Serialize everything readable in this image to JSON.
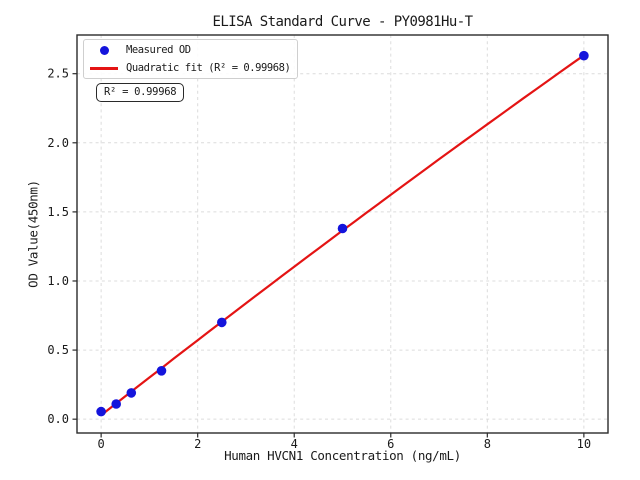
{
  "chart_data": {
    "type": "scatter",
    "title": "ELISA Standard Curve - PY0981Hu-T",
    "xlabel": "Human HVCN1 Concentration (ng/mL)",
    "ylabel": "OD Value(450nm)",
    "xlim": [
      -0.5,
      10.5
    ],
    "ylim": [
      -0.1,
      2.78
    ],
    "xticks": {
      "values": [
        0,
        2,
        4,
        6,
        8,
        10
      ],
      "labels": [
        "0",
        "2",
        "4",
        "6",
        "8",
        "10"
      ]
    },
    "yticks": {
      "values": [
        0,
        0.5,
        1.0,
        1.5,
        2.0,
        2.5
      ],
      "labels": [
        "0.0",
        "0.5",
        "1.0",
        "1.5",
        "2.0",
        "2.5"
      ]
    },
    "grid": {
      "visible": true,
      "line_style": "dashed",
      "color": "#dcdcdc"
    },
    "axis_color": "#2b2b2b",
    "series": [
      {
        "name": "Measured OD",
        "type": "scatter",
        "color": "#1414dc",
        "marker": "circle",
        "points": [
          [
            0,
            0.055
          ],
          [
            0.312,
            0.11
          ],
          [
            0.625,
            0.19
          ],
          [
            1.25,
            0.35
          ],
          [
            2.5,
            0.7
          ],
          [
            5,
            1.38
          ],
          [
            10,
            2.63
          ]
        ]
      },
      {
        "name": "Quadratic fit",
        "type": "line",
        "color": "#e41414",
        "fit": {
          "kind": "quadratic",
          "a": -0.001366,
          "b": 0.274092,
          "c": 0.0287,
          "x_start": 0,
          "x_end": 10,
          "r_squared": 0.99968
        }
      }
    ],
    "legend": {
      "position": "upper-left",
      "entries": [
        {
          "label": "Measured OD",
          "marker": "dot",
          "color": "#1414dc"
        },
        {
          "label": "Quadratic fit (R² = 0.99968)",
          "marker": "line",
          "color": "#e41414"
        }
      ]
    },
    "annotation": {
      "text": "R² = 0.99968"
    }
  }
}
